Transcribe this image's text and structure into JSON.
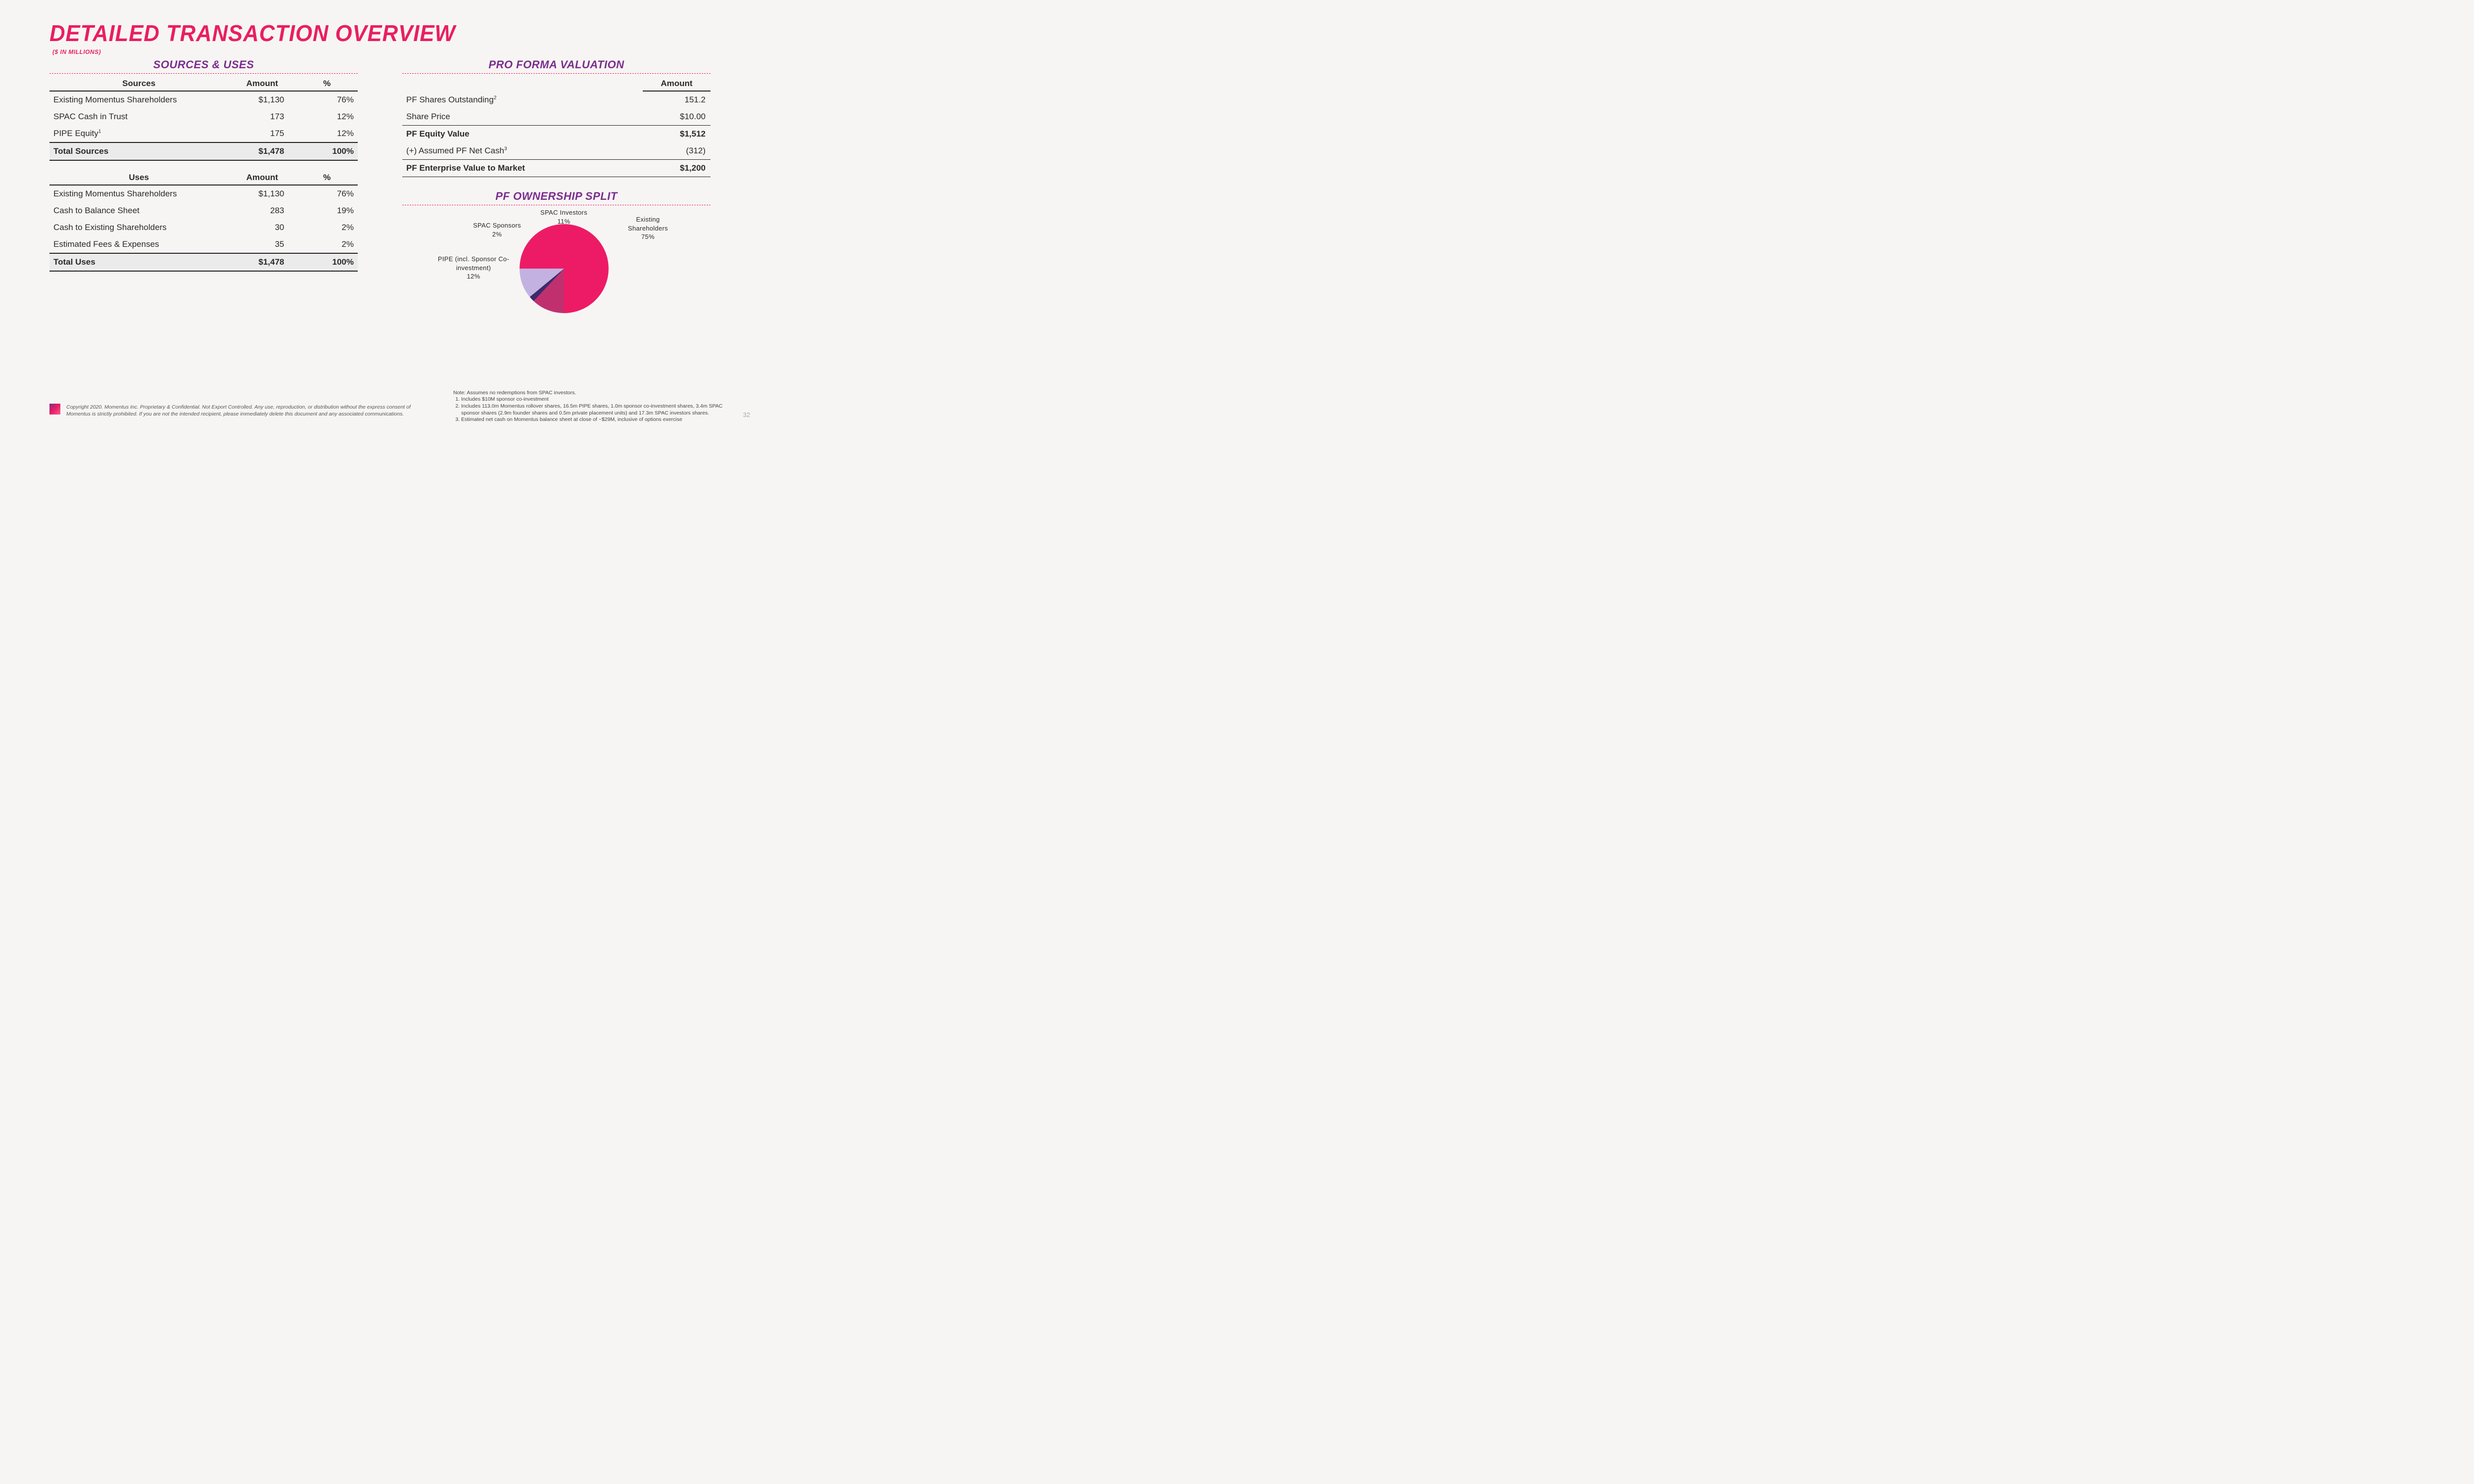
{
  "title": "DETAILED TRANSACTION OVERVIEW",
  "subtitle": "($ IN MILLIONS)",
  "left": {
    "heading": "SOURCES & USES",
    "sources": {
      "col_label": "Sources",
      "col_amount": "Amount",
      "col_pct": "%",
      "rows": [
        {
          "label": "Existing Momentus Shareholders",
          "amount": "$1,130",
          "pct": "76%"
        },
        {
          "label": "SPAC Cash in Trust",
          "amount": "173",
          "pct": "12%"
        },
        {
          "label": "PIPE Equity",
          "sup": "1",
          "amount": "175",
          "pct": "12%"
        }
      ],
      "total": {
        "label": "Total Sources",
        "amount": "$1,478",
        "pct": "100%"
      }
    },
    "uses": {
      "col_label": "Uses",
      "col_amount": "Amount",
      "col_pct": "%",
      "rows": [
        {
          "label": "Existing Momentus Shareholders",
          "amount": "$1,130",
          "pct": "76%"
        },
        {
          "label": "Cash to Balance Sheet",
          "amount": "283",
          "pct": "19%"
        },
        {
          "label": "Cash to Existing Shareholders",
          "amount": "30",
          "pct": "2%"
        },
        {
          "label": "Estimated Fees & Expenses",
          "amount": "35",
          "pct": "2%"
        }
      ],
      "total": {
        "label": "Total Uses",
        "amount": "$1,478",
        "pct": "100%"
      }
    }
  },
  "right": {
    "heading": "PRO FORMA VALUATION",
    "val": {
      "col_amount": "Amount",
      "rows": [
        {
          "label": "PF Shares Outstanding",
          "sup": "2",
          "amount": "151.2",
          "style": "plain"
        },
        {
          "label": "Share Price",
          "amount": "$10.00",
          "style": "plain"
        },
        {
          "label": "PF Equity Value",
          "amount": "$1,512",
          "style": "boldline"
        },
        {
          "label": "(+) Assumed PF Net Cash",
          "sup": "3",
          "amount": "(312)",
          "style": "plain"
        },
        {
          "label": "PF Enterprise Value to Market",
          "amount": "$1,200",
          "style": "boldline2"
        }
      ]
    },
    "ownership_heading": "PF OWNERSHIP SPLIT",
    "pie": {
      "type": "pie",
      "slices": [
        {
          "label": "Existing Shareholders",
          "pct_text": "75%",
          "value": 75,
          "color": "#ed1b66"
        },
        {
          "label": "PIPE (incl. Sponsor Co-investment)",
          "pct_text": "12%",
          "value": 12,
          "color": "#c0306f"
        },
        {
          "label": "SPAC Sponsors",
          "pct_text": "2%",
          "value": 2,
          "color": "#3d2a6d"
        },
        {
          "label": "SPAC Investors",
          "pct_text": "11%",
          "value": 11,
          "color": "#c3b1e1"
        }
      ],
      "start_angle_deg": -90,
      "background": "#f7f5f4"
    }
  },
  "footer_copyright": "Copyright 2020. Momentus Inc. Proprietary & Confidential. Not Export Controlled. Any use, reproduction, or distribution without the express consent of Momentus is strictly prohibited. If you are not the intended recipient, please immediately delete this document and any associated communications.",
  "notes": {
    "intro": "Note: Assumes no redemptions from SPAC investors.",
    "items": [
      "Includes $10M sponsor co-investment",
      "Includes 113.0m Momentus rollover shares, 16.5m PIPE shares, 1.0m sponsor co-investment shares, 3.4m SPAC sponsor shares (2.9m founder shares and 0.5m private placement units) and 17.3m SPAC investors shares.",
      "Estimated net cash on Momentus balance sheet at close of ~$29M, inclusive of options exercise"
    ]
  },
  "page_number": "32",
  "colors": {
    "accent_pink": "#e91e63",
    "accent_purple": "#7b2d8e",
    "text": "#2a2a2a",
    "bg": "#f7f5f4"
  }
}
